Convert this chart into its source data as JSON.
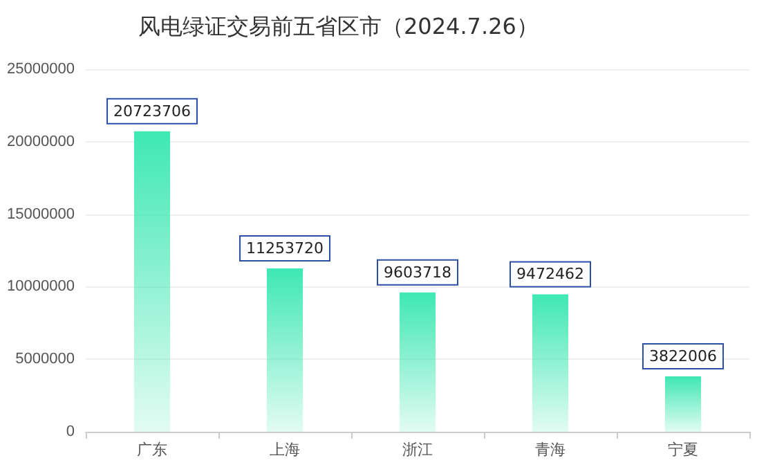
{
  "chart_data": {
    "type": "bar",
    "title": "风电绿证交易前五省区市（2024.7.26）",
    "categories": [
      "广东",
      "上海",
      "浙江",
      "青海",
      "宁夏"
    ],
    "values": [
      20723706,
      11253720,
      9603718,
      9472462,
      3822006
    ],
    "color": "#3ee8b2",
    "ylim": [
      0,
      25000000
    ],
    "yticks": [
      0,
      5000000,
      10000000,
      15000000,
      20000000,
      25000000
    ],
    "grid": "y",
    "data_labels": true
  }
}
